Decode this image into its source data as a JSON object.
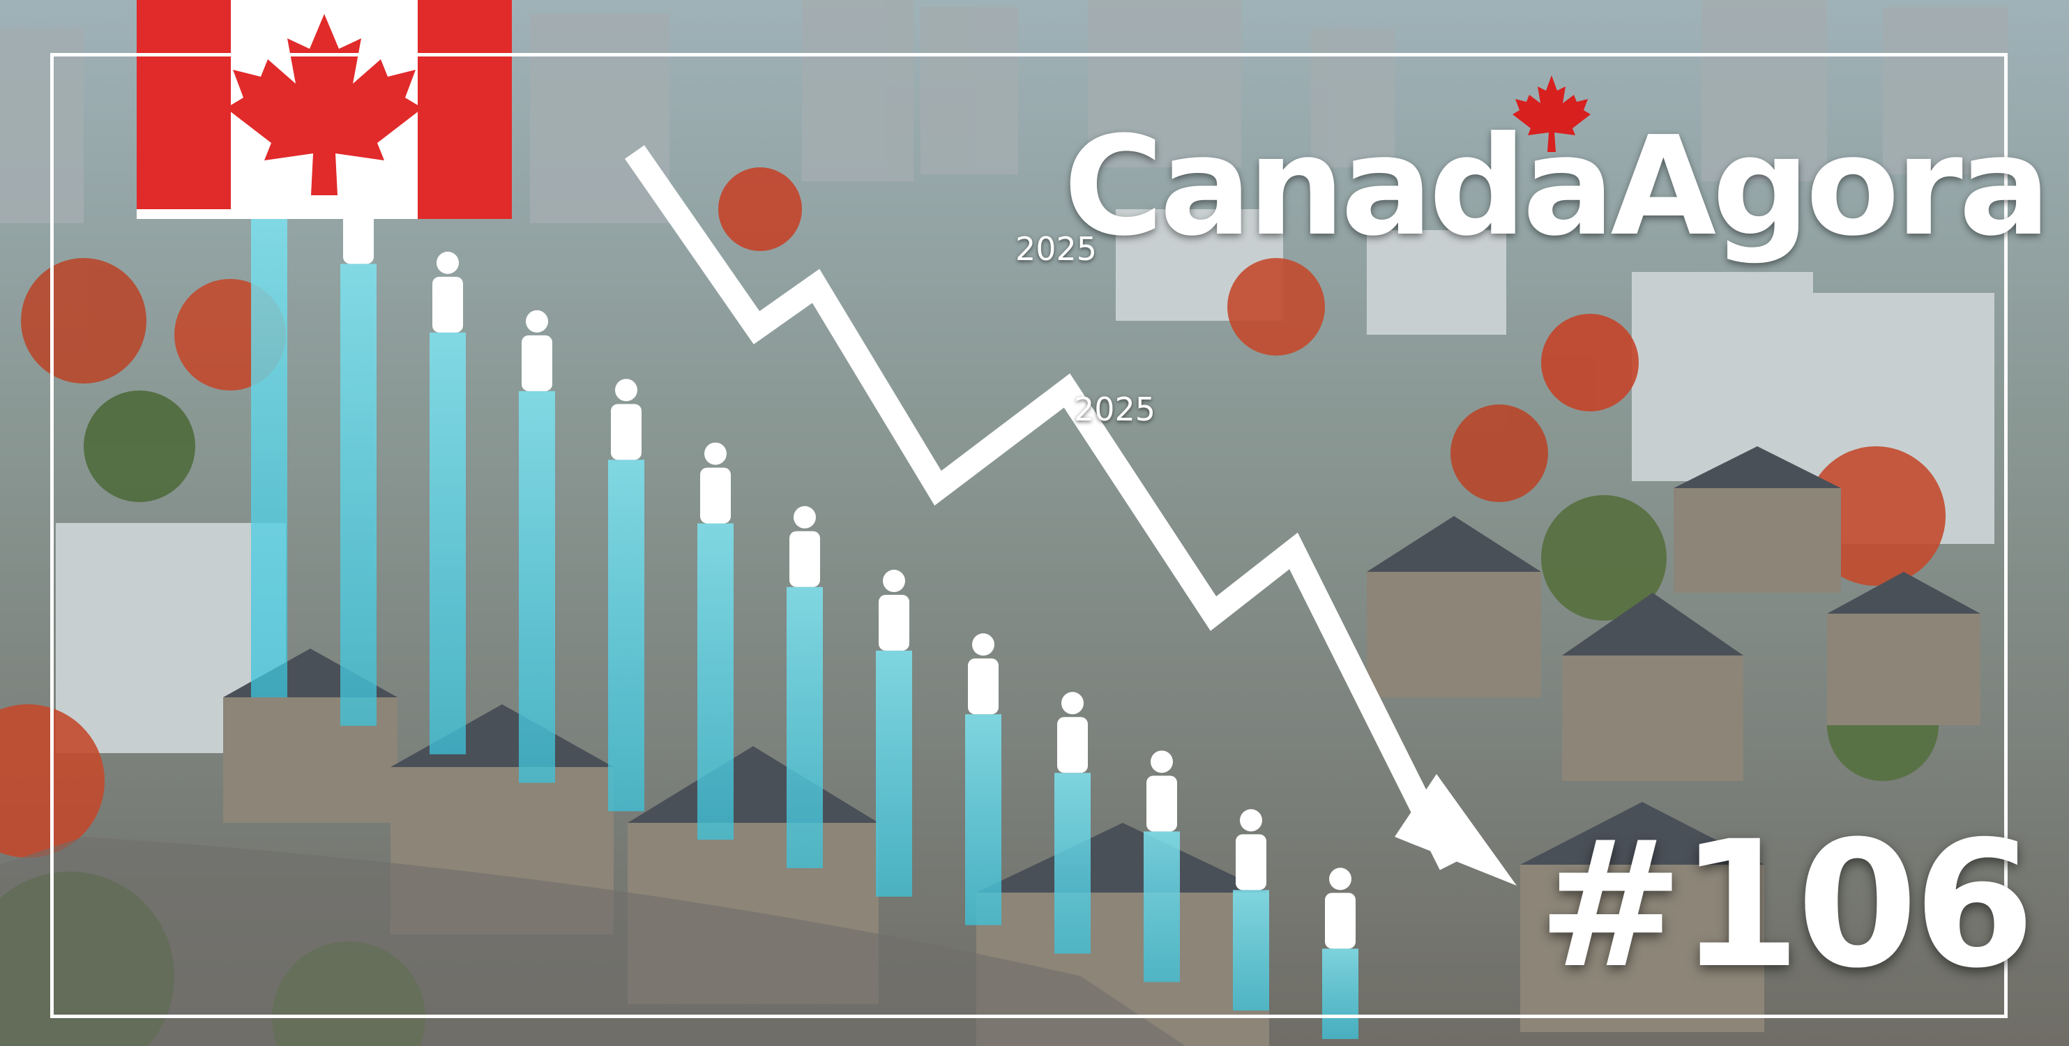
{
  "brand": {
    "name": "CanadaAgora",
    "leaf_icon": "maple-leaf-icon"
  },
  "episode": {
    "number": "#106"
  },
  "year_labels": [
    "2025",
    "2025"
  ],
  "flag": {
    "country": "Canada",
    "icon": "canada-flag-icon",
    "red": "#e12a2a",
    "white": "#ffffff"
  },
  "colors": {
    "bars": "#5ad2e6",
    "arrow": "#ffffff",
    "text": "#ffffff"
  },
  "chart_data": {
    "type": "bar",
    "series": [
      {
        "values": [
          100,
          92,
          84,
          78,
          70,
          63,
          56,
          49,
          42,
          36,
          30,
          24,
          18
        ]
      }
    ],
    "trend": "downward"
  }
}
